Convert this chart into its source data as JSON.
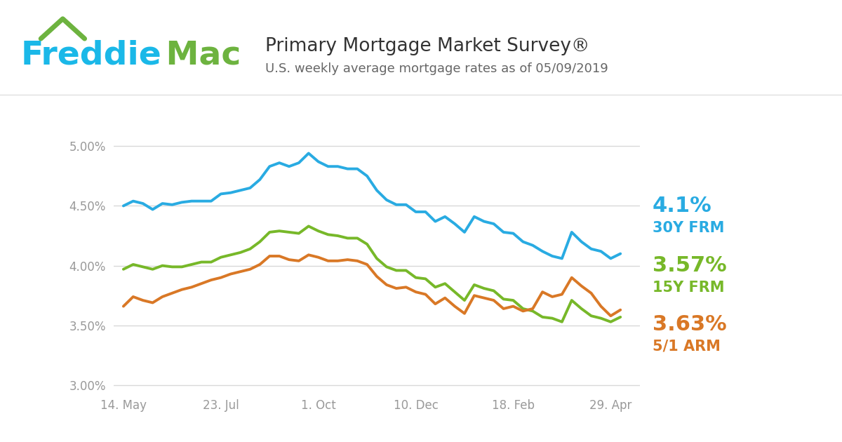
{
  "title": "Primary Mortgage Market Survey®",
  "subtitle": "U.S. weekly average mortgage rates as of 05/09/2019",
  "freddie_blue": "#1ab8e8",
  "freddie_green": "#6db33f",
  "line_blue": "#29abe2",
  "line_green": "#77b829",
  "line_orange": "#d97826",
  "label_30y": "4.1%",
  "label_30y_sub": "30Y FRM",
  "label_15y": "3.57%",
  "label_15y_sub": "15Y FRM",
  "label_arm": "3.63%",
  "label_arm_sub": "5/1 ARM",
  "yticks": [
    3.0,
    3.5,
    4.0,
    4.5,
    5.0
  ],
  "ytick_labels": [
    "3.00%",
    "3.50%",
    "4.00%",
    "4.50%",
    "5.00%"
  ],
  "xtick_labels": [
    "14. May",
    "23. Jul",
    "1. Oct",
    "10. Dec",
    "18. Feb",
    "29. Apr"
  ],
  "xtick_positions": [
    0,
    10,
    20,
    30,
    40,
    50
  ],
  "bg_color": "#ffffff",
  "grid_color": "#d8d8d8",
  "tick_color": "#999999",
  "title_color": "#333333",
  "subtitle_color": "#666666",
  "ylim_low": 2.95,
  "ylim_high": 5.15,
  "x_30y": [
    0,
    1,
    2,
    3,
    4,
    5,
    6,
    7,
    8,
    9,
    10,
    11,
    12,
    13,
    14,
    15,
    16,
    17,
    18,
    19,
    20,
    21,
    22,
    23,
    24,
    25,
    26,
    27,
    28,
    29,
    30,
    31,
    32,
    33,
    34,
    35,
    36,
    37,
    38,
    39,
    40,
    41,
    42,
    43,
    44,
    45,
    46,
    47,
    48,
    49,
    50,
    51
  ],
  "y_30y": [
    4.5,
    4.54,
    4.52,
    4.47,
    4.52,
    4.51,
    4.53,
    4.54,
    4.54,
    4.54,
    4.6,
    4.61,
    4.63,
    4.65,
    4.72,
    4.83,
    4.86,
    4.83,
    4.86,
    4.94,
    4.87,
    4.83,
    4.83,
    4.81,
    4.81,
    4.75,
    4.63,
    4.55,
    4.51,
    4.51,
    4.45,
    4.45,
    4.37,
    4.41,
    4.35,
    4.28,
    4.41,
    4.37,
    4.35,
    4.28,
    4.27,
    4.2,
    4.17,
    4.12,
    4.08,
    4.06,
    4.28,
    4.2,
    4.14,
    4.12,
    4.06,
    4.1
  ],
  "x_15y": [
    0,
    1,
    2,
    3,
    4,
    5,
    6,
    7,
    8,
    9,
    10,
    11,
    12,
    13,
    14,
    15,
    16,
    17,
    18,
    19,
    20,
    21,
    22,
    23,
    24,
    25,
    26,
    27,
    28,
    29,
    30,
    31,
    32,
    33,
    34,
    35,
    36,
    37,
    38,
    39,
    40,
    41,
    42,
    43,
    44,
    45,
    46,
    47,
    48,
    49,
    50,
    51
  ],
  "y_15y": [
    3.97,
    4.01,
    3.99,
    3.97,
    4.0,
    3.99,
    3.99,
    4.01,
    4.03,
    4.03,
    4.07,
    4.09,
    4.11,
    4.14,
    4.2,
    4.28,
    4.29,
    4.28,
    4.27,
    4.33,
    4.29,
    4.26,
    4.25,
    4.23,
    4.23,
    4.18,
    4.06,
    3.99,
    3.96,
    3.96,
    3.9,
    3.89,
    3.82,
    3.85,
    3.78,
    3.71,
    3.84,
    3.81,
    3.79,
    3.72,
    3.71,
    3.64,
    3.62,
    3.57,
    3.56,
    3.53,
    3.71,
    3.64,
    3.58,
    3.56,
    3.53,
    3.57
  ],
  "x_arm": [
    0,
    1,
    2,
    3,
    4,
    5,
    6,
    7,
    8,
    9,
    10,
    11,
    12,
    13,
    14,
    15,
    16,
    17,
    18,
    19,
    20,
    21,
    22,
    23,
    24,
    25,
    26,
    27,
    28,
    29,
    30,
    31,
    32,
    33,
    34,
    35,
    36,
    37,
    38,
    39,
    40,
    41,
    42,
    43,
    44,
    45,
    46,
    47,
    48,
    49,
    50,
    51
  ],
  "y_arm": [
    3.66,
    3.74,
    3.71,
    3.69,
    3.74,
    3.77,
    3.8,
    3.82,
    3.85,
    3.88,
    3.9,
    3.93,
    3.95,
    3.97,
    4.01,
    4.08,
    4.08,
    4.05,
    4.04,
    4.09,
    4.07,
    4.04,
    4.04,
    4.05,
    4.04,
    4.01,
    3.91,
    3.84,
    3.81,
    3.82,
    3.78,
    3.76,
    3.68,
    3.73,
    3.66,
    3.6,
    3.75,
    3.73,
    3.71,
    3.64,
    3.66,
    3.62,
    3.64,
    3.78,
    3.74,
    3.76,
    3.9,
    3.83,
    3.77,
    3.66,
    3.58,
    3.63
  ]
}
